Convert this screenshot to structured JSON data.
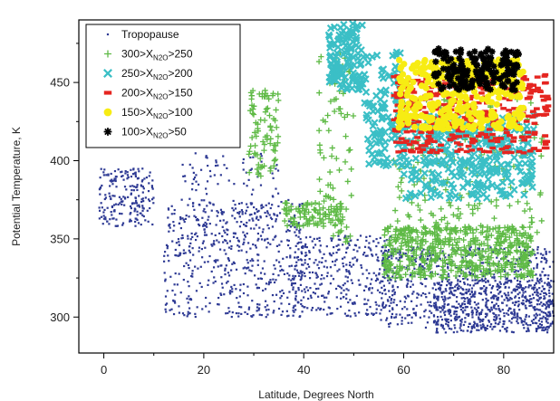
{
  "chart_data": {
    "type": "scatter",
    "xlabel": "Latitude, Degrees North",
    "ylabel": "Potential Temperature, K",
    "xlim": [
      -5,
      90
    ],
    "ylim": [
      277,
      490
    ],
    "x_ticks": [
      0,
      20,
      40,
      60,
      80
    ],
    "y_ticks": [
      300,
      350,
      400,
      450
    ],
    "grid": false,
    "legend_position": "top-left",
    "series": [
      {
        "name": "Tropopause",
        "main": "Tropopause",
        "sub": "",
        "tail": "",
        "marker": "dot",
        "color": "#2e3a94",
        "clusters": [
          {
            "x": [
              -1,
              10
            ],
            "y": [
              358,
              395
            ],
            "n": 200
          },
          {
            "x": [
              12,
              40
            ],
            "y": [
              300,
              375
            ],
            "n": 500
          },
          {
            "x": [
              15,
              35
            ],
            "y": [
              345,
              405
            ],
            "n": 160
          },
          {
            "x": [
              38,
              58
            ],
            "y": [
              300,
              352
            ],
            "n": 350
          },
          {
            "x": [
              55,
              90
            ],
            "y": [
              293,
              345
            ],
            "n": 700
          },
          {
            "x": [
              66,
              90
            ],
            "y": [
              290,
              325
            ],
            "n": 450
          }
        ]
      },
      {
        "name": "300>XN2O>250",
        "main": "300>X",
        "sub": "N2O",
        "tail": ">250",
        "marker": "plus",
        "color": "#5fba46",
        "clusters": [
          {
            "x": [
              29,
              35
            ],
            "y": [
              390,
              445
            ],
            "n": 80
          },
          {
            "x": [
              36,
              48
            ],
            "y": [
              358,
              373
            ],
            "n": 90
          },
          {
            "x": [
              43,
              50
            ],
            "y": [
              345,
              470
            ],
            "n": 80
          },
          {
            "x": [
              56,
              86
            ],
            "y": [
              325,
              358
            ],
            "n": 500
          },
          {
            "x": [
              58,
              88
            ],
            "y": [
              340,
              440
            ],
            "n": 220
          }
        ]
      },
      {
        "name": "250>XN2O>200",
        "main": "250>X",
        "sub": "N2O",
        "tail": ">200",
        "marker": "x",
        "color": "#3bbfc6",
        "clusters": [
          {
            "x": [
              45,
              52
            ],
            "y": [
              445,
              488
            ],
            "n": 120
          },
          {
            "x": [
              52,
              60
            ],
            "y": [
              395,
              470
            ],
            "n": 120
          },
          {
            "x": [
              60,
              86
            ],
            "y": [
              375,
              430
            ],
            "n": 320
          }
        ]
      },
      {
        "name": "200>XN2O>150",
        "main": "200>X",
        "sub": "N2O",
        "tail": ">150",
        "marker": "dash",
        "color": "#e52520",
        "clusters": [
          {
            "x": [
              58,
              89
            ],
            "y": [
              405,
              455
            ],
            "n": 380
          }
        ]
      },
      {
        "name": "150>XN2O>100",
        "main": "150>X",
        "sub": "N2O",
        "tail": ">100",
        "marker": "circle",
        "color": "#f7ec13",
        "clusters": [
          {
            "x": [
              59,
              84
            ],
            "y": [
              420,
              465
            ],
            "n": 360
          }
        ]
      },
      {
        "name": "100>XN2O>50",
        "main": "100>X",
        "sub": "N2O",
        "tail": ">50",
        "marker": "star",
        "color": "#000000",
        "clusters": [
          {
            "x": [
              66,
              83
            ],
            "y": [
              445,
              472
            ],
            "n": 170
          }
        ]
      }
    ]
  }
}
